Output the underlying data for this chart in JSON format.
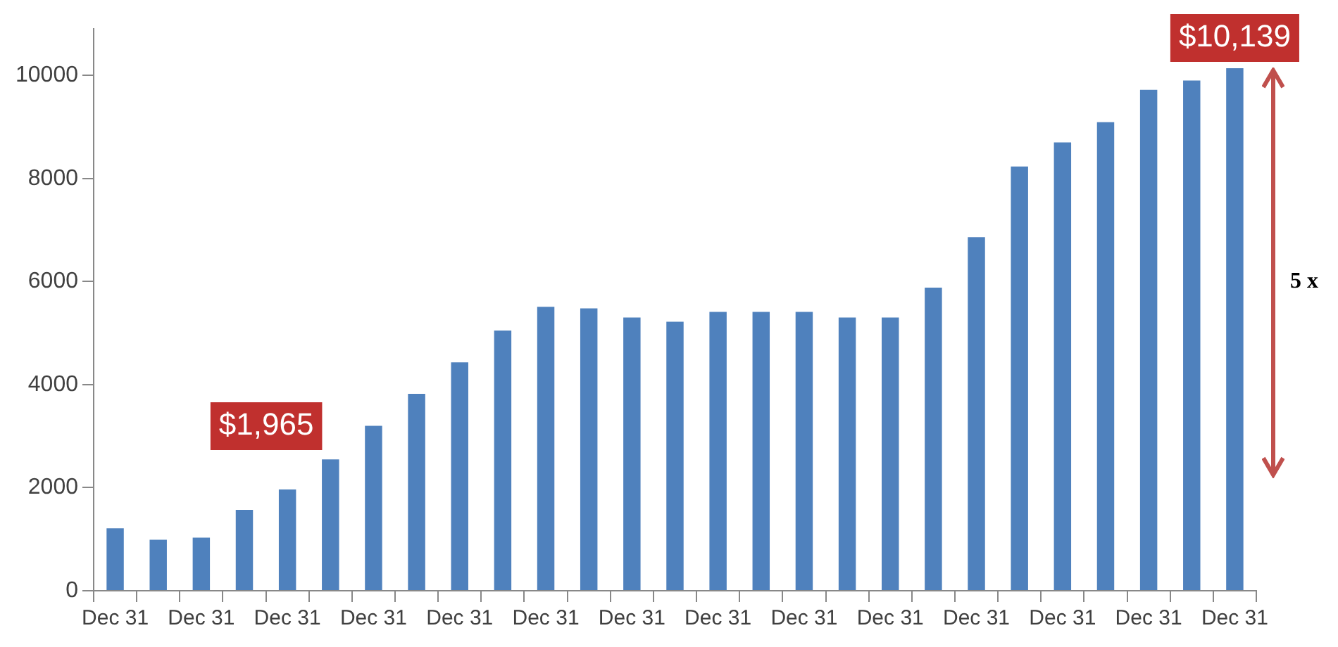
{
  "chart_data": {
    "type": "bar",
    "categories": [
      "Dec 31",
      null,
      "Dec 31",
      null,
      "Dec 31",
      null,
      "Dec 31",
      null,
      "Dec 31",
      null,
      "Dec 31",
      null,
      "Dec 31",
      null,
      "Dec 31",
      null,
      "Dec 31",
      null,
      "Dec 31",
      null,
      "Dec 31",
      null,
      "Dec 31",
      null,
      "Dec 31",
      null,
      "Dec 31"
    ],
    "values": [
      1210,
      990,
      1030,
      1570,
      1965,
      2550,
      3200,
      3820,
      4430,
      5050,
      5510,
      5480,
      5300,
      5220,
      5410,
      5410,
      5410,
      5300,
      5300,
      5880,
      6860,
      8230,
      8700,
      9090,
      9720,
      9900,
      10139
    ],
    "value_labels": [
      null,
      null,
      null,
      null,
      "$1,965",
      null,
      null,
      null,
      null,
      null,
      null,
      null,
      null,
      null,
      null,
      null,
      null,
      null,
      null,
      null,
      null,
      null,
      null,
      null,
      null,
      null,
      "$10,139"
    ],
    "color": "#4f81bd",
    "ylim": [
      0,
      10900
    ],
    "yticks": [
      0,
      2000,
      4000,
      6000,
      8000,
      10000
    ],
    "grid": false,
    "annotations": [
      "5 x"
    ]
  }
}
